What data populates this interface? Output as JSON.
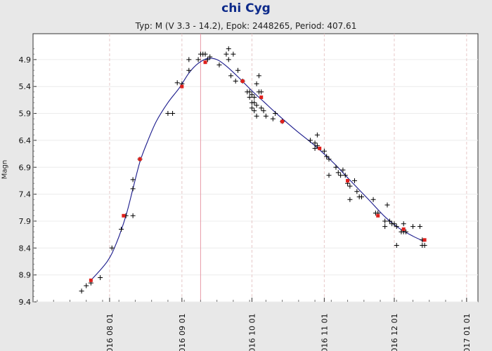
{
  "header": {
    "title": "chi Cyg",
    "subtitle": "Typ: M (V 3.3 - 14.2), Epok: 2448265, Period: 407.61"
  },
  "colors": {
    "title": "#0d2a8a",
    "curve": "#1a1a8c",
    "observations": "#000000",
    "binned": "#e0201c",
    "grid": "#e6c8c8",
    "marker_line": "#e79aa6"
  },
  "chart_data": {
    "type": "scatter",
    "title": "chi Cyg",
    "subtitle": "Typ: M (V 3.3 - 14.2), Epok: 2448265, Period: 407.61",
    "ylabel": "Magn",
    "xlabel": "",
    "y_inverted": true,
    "ylim": [
      9.4,
      4.6
    ],
    "xlim": [
      "2016-07-01",
      "2017-01-15"
    ],
    "yticks": [
      4.9,
      5.4,
      5.9,
      6.4,
      6.9,
      7.4,
      7.9,
      8.4,
      8.9,
      9.4
    ],
    "xticks": [
      "2016 08 01",
      "2016 09 01",
      "2016 10 01",
      "2016 11 01",
      "2016 12 01",
      "2017 01 01"
    ],
    "grid": true,
    "vertical_marker": "2016-09-09",
    "observations": [
      [
        "2016-07-20",
        9.2
      ],
      [
        "2016-07-22",
        9.1
      ],
      [
        "2016-07-24",
        9.05
      ],
      [
        "2016-07-28",
        8.95
      ],
      [
        "2016-08-02",
        8.4
      ],
      [
        "2016-08-06",
        8.05
      ],
      [
        "2016-08-08",
        7.8
      ],
      [
        "2016-08-11",
        7.3
      ],
      [
        "2016-08-11",
        7.13
      ],
      [
        "2016-08-11",
        7.8
      ],
      [
        "2016-08-14",
        6.75
      ],
      [
        "2016-08-26",
        5.9
      ],
      [
        "2016-08-28",
        5.9
      ],
      [
        "2016-08-30",
        5.33
      ],
      [
        "2016-09-01",
        5.35
      ],
      [
        "2016-09-04",
        5.1
      ],
      [
        "2016-09-04",
        4.9
      ],
      [
        "2016-09-08",
        4.9
      ],
      [
        "2016-09-09",
        4.8
      ],
      [
        "2016-09-10",
        4.8
      ],
      [
        "2016-09-11",
        4.8
      ],
      [
        "2016-09-12",
        4.9
      ],
      [
        "2016-09-13",
        4.85
      ],
      [
        "2016-09-17",
        5.0
      ],
      [
        "2016-09-20",
        4.8
      ],
      [
        "2016-09-21",
        4.9
      ],
      [
        "2016-09-21",
        4.7
      ],
      [
        "2016-09-22",
        5.2
      ],
      [
        "2016-09-23",
        4.8
      ],
      [
        "2016-09-24",
        5.3
      ],
      [
        "2016-09-25",
        5.1
      ],
      [
        "2016-09-27",
        5.3
      ],
      [
        "2016-09-29",
        5.5
      ],
      [
        "2016-09-30",
        5.5
      ],
      [
        "2016-09-30",
        5.6
      ],
      [
        "2016-10-01",
        5.55
      ],
      [
        "2016-10-01",
        5.7
      ],
      [
        "2016-10-01",
        5.8
      ],
      [
        "2016-10-02",
        5.6
      ],
      [
        "2016-10-02",
        5.7
      ],
      [
        "2016-10-02",
        5.85
      ],
      [
        "2016-10-03",
        5.35
      ],
      [
        "2016-10-03",
        5.75
      ],
      [
        "2016-10-03",
        5.95
      ],
      [
        "2016-10-04",
        5.2
      ],
      [
        "2016-10-04",
        5.5
      ],
      [
        "2016-10-05",
        5.5
      ],
      [
        "2016-10-05",
        5.8
      ],
      [
        "2016-10-06",
        5.85
      ],
      [
        "2016-10-07",
        5.95
      ],
      [
        "2016-10-10",
        6.0
      ],
      [
        "2016-10-11",
        5.9
      ],
      [
        "2016-10-14",
        6.05
      ],
      [
        "2016-10-26",
        6.4
      ],
      [
        "2016-10-28",
        6.45
      ],
      [
        "2016-10-28",
        6.55
      ],
      [
        "2016-10-29",
        6.3
      ],
      [
        "2016-10-29",
        6.5
      ],
      [
        "2016-11-01",
        6.6
      ],
      [
        "2016-11-02",
        6.7
      ],
      [
        "2016-11-03",
        6.75
      ],
      [
        "2016-11-03",
        7.05
      ],
      [
        "2016-11-06",
        6.9
      ],
      [
        "2016-11-07",
        7.0
      ],
      [
        "2016-11-08",
        7.05
      ],
      [
        "2016-11-09",
        6.95
      ],
      [
        "2016-11-10",
        7.05
      ],
      [
        "2016-11-11",
        7.2
      ],
      [
        "2016-11-12",
        7.5
      ],
      [
        "2016-11-12",
        7.25
      ],
      [
        "2016-11-14",
        7.15
      ],
      [
        "2016-11-15",
        7.35
      ],
      [
        "2016-11-16",
        7.45
      ],
      [
        "2016-11-17",
        7.45
      ],
      [
        "2016-11-22",
        7.5
      ],
      [
        "2016-11-23",
        7.75
      ],
      [
        "2016-11-24",
        7.75
      ],
      [
        "2016-11-27",
        8.0
      ],
      [
        "2016-11-27",
        7.9
      ],
      [
        "2016-11-28",
        7.6
      ],
      [
        "2016-11-29",
        7.9
      ],
      [
        "2016-11-30",
        7.95
      ],
      [
        "2016-12-01",
        7.95
      ],
      [
        "2016-12-02",
        8.0
      ],
      [
        "2016-12-02",
        8.35
      ],
      [
        "2016-12-04",
        8.1
      ],
      [
        "2016-12-05",
        7.95
      ],
      [
        "2016-12-05",
        8.1
      ],
      [
        "2016-12-06",
        8.1
      ],
      [
        "2016-12-09",
        8.0
      ],
      [
        "2016-12-12",
        8.0
      ],
      [
        "2016-12-13",
        8.25
      ],
      [
        "2016-12-13",
        8.35
      ],
      [
        "2016-12-14",
        8.35
      ]
    ],
    "binned_means": [
      [
        "2016-07-24",
        9.0
      ],
      [
        "2016-08-07",
        7.8
      ],
      [
        "2016-08-14",
        6.75
      ],
      [
        "2016-09-01",
        5.4
      ],
      [
        "2016-09-11",
        4.95
      ],
      [
        "2016-09-27",
        5.3
      ],
      [
        "2016-10-05",
        5.6
      ],
      [
        "2016-10-14",
        6.05
      ],
      [
        "2016-10-30",
        6.55
      ],
      [
        "2016-11-11",
        7.15
      ],
      [
        "2016-11-24",
        7.8
      ],
      [
        "2016-12-05",
        8.05
      ],
      [
        "2016-12-14",
        8.25
      ]
    ],
    "fit_curve": [
      [
        "2016-07-24",
        9.0
      ],
      [
        "2016-07-31",
        8.65
      ],
      [
        "2016-08-04",
        8.3
      ],
      [
        "2016-08-08",
        7.8
      ],
      [
        "2016-08-11",
        7.3
      ],
      [
        "2016-08-14",
        6.8
      ],
      [
        "2016-08-17",
        6.45
      ],
      [
        "2016-08-21",
        6.05
      ],
      [
        "2016-08-26",
        5.7
      ],
      [
        "2016-08-31",
        5.42
      ],
      [
        "2016-09-04",
        5.15
      ],
      [
        "2016-09-08",
        4.97
      ],
      [
        "2016-09-12",
        4.88
      ],
      [
        "2016-09-16",
        4.9
      ],
      [
        "2016-09-20",
        5.02
      ],
      [
        "2016-09-25",
        5.22
      ],
      [
        "2016-10-01",
        5.48
      ],
      [
        "2016-10-06",
        5.68
      ],
      [
        "2016-10-12",
        5.92
      ],
      [
        "2016-10-20",
        6.22
      ],
      [
        "2016-10-28",
        6.5
      ],
      [
        "2016-11-05",
        6.82
      ],
      [
        "2016-11-12",
        7.14
      ],
      [
        "2016-11-20",
        7.5
      ],
      [
        "2016-11-27",
        7.82
      ],
      [
        "2016-12-03",
        8.03
      ],
      [
        "2016-12-09",
        8.18
      ],
      [
        "2016-12-14",
        8.28
      ]
    ]
  }
}
